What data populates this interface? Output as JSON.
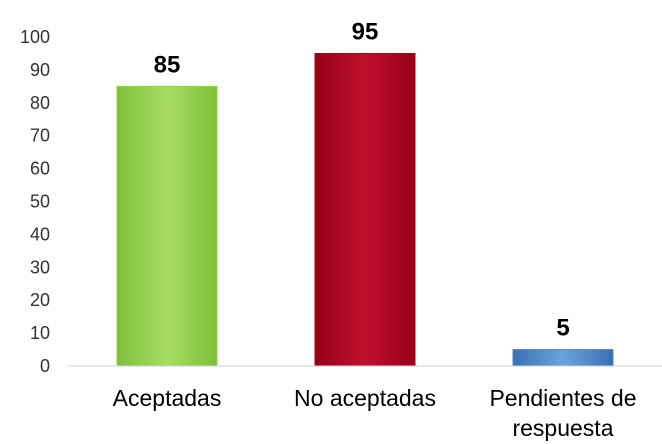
{
  "chart_data": {
    "type": "bar",
    "categories": [
      "Aceptadas",
      "No aceptadas",
      "Pendientes de respuesta"
    ],
    "category_lines": [
      [
        "Aceptadas"
      ],
      [
        "No aceptadas"
      ],
      [
        "Pendientes de",
        "respuesta"
      ]
    ],
    "values": [
      85,
      95,
      5
    ],
    "data_labels": [
      "85",
      "95",
      "5"
    ],
    "bar_colors": [
      "#92d050",
      "#b00020",
      "#4a86c8"
    ],
    "title": "",
    "xlabel": "",
    "ylabel": "",
    "ylim": [
      0,
      100
    ],
    "yticks": [
      0,
      10,
      20,
      30,
      40,
      50,
      60,
      70,
      80,
      90,
      100
    ],
    "grid": false,
    "legend": "none"
  }
}
